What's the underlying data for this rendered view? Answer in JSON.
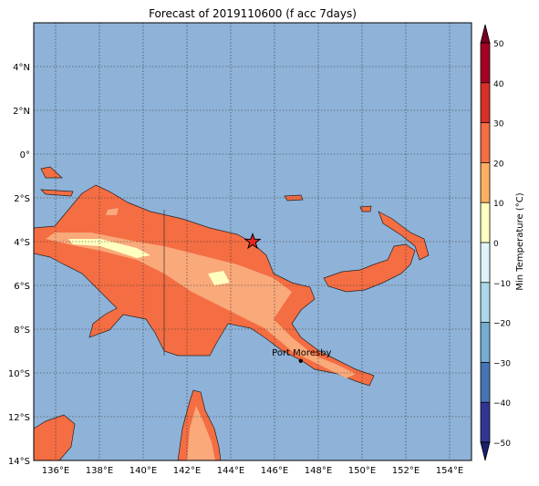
{
  "map": {
    "title": "Forecast of 2019110600 (f acc 7days)",
    "xlim": [
      135,
      155
    ],
    "ylim": [
      -14,
      6
    ],
    "xticks": [
      {
        "value": 136,
        "label": "136°E"
      },
      {
        "value": 138,
        "label": "138°E"
      },
      {
        "value": 140,
        "label": "140°E"
      },
      {
        "value": 142,
        "label": "142°E"
      },
      {
        "value": 144,
        "label": "144°E"
      },
      {
        "value": 146,
        "label": "146°E"
      },
      {
        "value": 148,
        "label": "148°E"
      },
      {
        "value": 150,
        "label": "150°E"
      },
      {
        "value": 152,
        "label": "152°E"
      },
      {
        "value": 154,
        "label": "154°E"
      }
    ],
    "yticks": [
      {
        "value": 4,
        "label": "4°N"
      },
      {
        "value": 2,
        "label": "2°N"
      },
      {
        "value": 0,
        "label": "0°"
      },
      {
        "value": -2,
        "label": "2°S"
      },
      {
        "value": -4,
        "label": "4°S"
      },
      {
        "value": -6,
        "label": "6°S"
      },
      {
        "value": -8,
        "label": "8°S"
      },
      {
        "value": -10,
        "label": "10°S"
      },
      {
        "value": -12,
        "label": "12°S"
      },
      {
        "value": -14,
        "label": "14°S"
      }
    ],
    "grid": true,
    "marker": {
      "lon": 145,
      "lat": -4,
      "color": "#e8251c"
    },
    "city": {
      "name": "Port Moresby",
      "lon": 147.2,
      "lat": -9.45
    },
    "colorbar": {
      "label": "Min Temperature (°C)",
      "ticks": [
        {
          "value": -50,
          "label": "−50"
        },
        {
          "value": -40,
          "label": "−40"
        },
        {
          "value": -30,
          "label": "−30"
        },
        {
          "value": -20,
          "label": "−20"
        },
        {
          "value": -10,
          "label": "−10"
        },
        0,
        10,
        20,
        30,
        40,
        50
      ],
      "colors": [
        "#313695",
        "#4575b4",
        "#74add1",
        "#abd9e9",
        "#e0f3f8",
        "#ffffbf",
        "#fdae61",
        "#f46d43",
        "#d73027",
        "#a50026"
      ],
      "under_color": "#1c1f6e",
      "over_color": "#7a0020"
    }
  }
}
